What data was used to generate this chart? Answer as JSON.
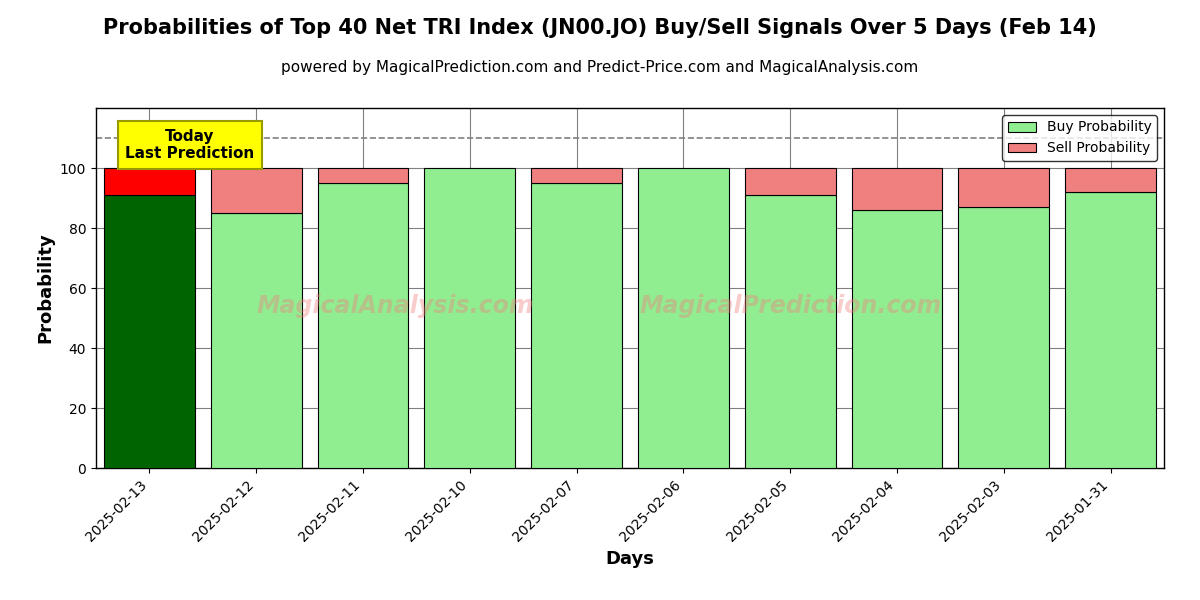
{
  "title": "Probabilities of Top 40 Net TRI Index (JN00.JO) Buy/Sell Signals Over 5 Days (Feb 14)",
  "subtitle": "powered by MagicalPrediction.com and Predict-Price.com and MagicalAnalysis.com",
  "xlabel": "Days",
  "ylabel": "Probability",
  "categories": [
    "2025-02-13",
    "2025-02-12",
    "2025-02-11",
    "2025-02-10",
    "2025-02-07",
    "2025-02-06",
    "2025-02-05",
    "2025-02-04",
    "2025-02-03",
    "2025-01-31"
  ],
  "buy_values": [
    91,
    85,
    95,
    100,
    95,
    100,
    91,
    86,
    87,
    92
  ],
  "sell_values": [
    9,
    15,
    5,
    0,
    5,
    0,
    9,
    14,
    13,
    8
  ],
  "today_buy_color": "#006400",
  "today_sell_color": "#FF0000",
  "buy_color": "#90EE90",
  "sell_color": "#F08080",
  "bar_edge_color": "#000000",
  "today_annotation_bg": "#FFFF00",
  "today_annotation_text": "Today\nLast Prediction",
  "ylim": [
    0,
    120
  ],
  "yticks": [
    0,
    20,
    40,
    60,
    80,
    100
  ],
  "dashed_line_y": 110,
  "legend_labels": [
    "Buy Probability",
    "Sell Probability"
  ],
  "watermark1": "MagicalAnalysis.com",
  "watermark2": "MagicalPrediction.com",
  "title_fontsize": 15,
  "subtitle_fontsize": 11,
  "label_fontsize": 13,
  "bar_width": 0.85
}
